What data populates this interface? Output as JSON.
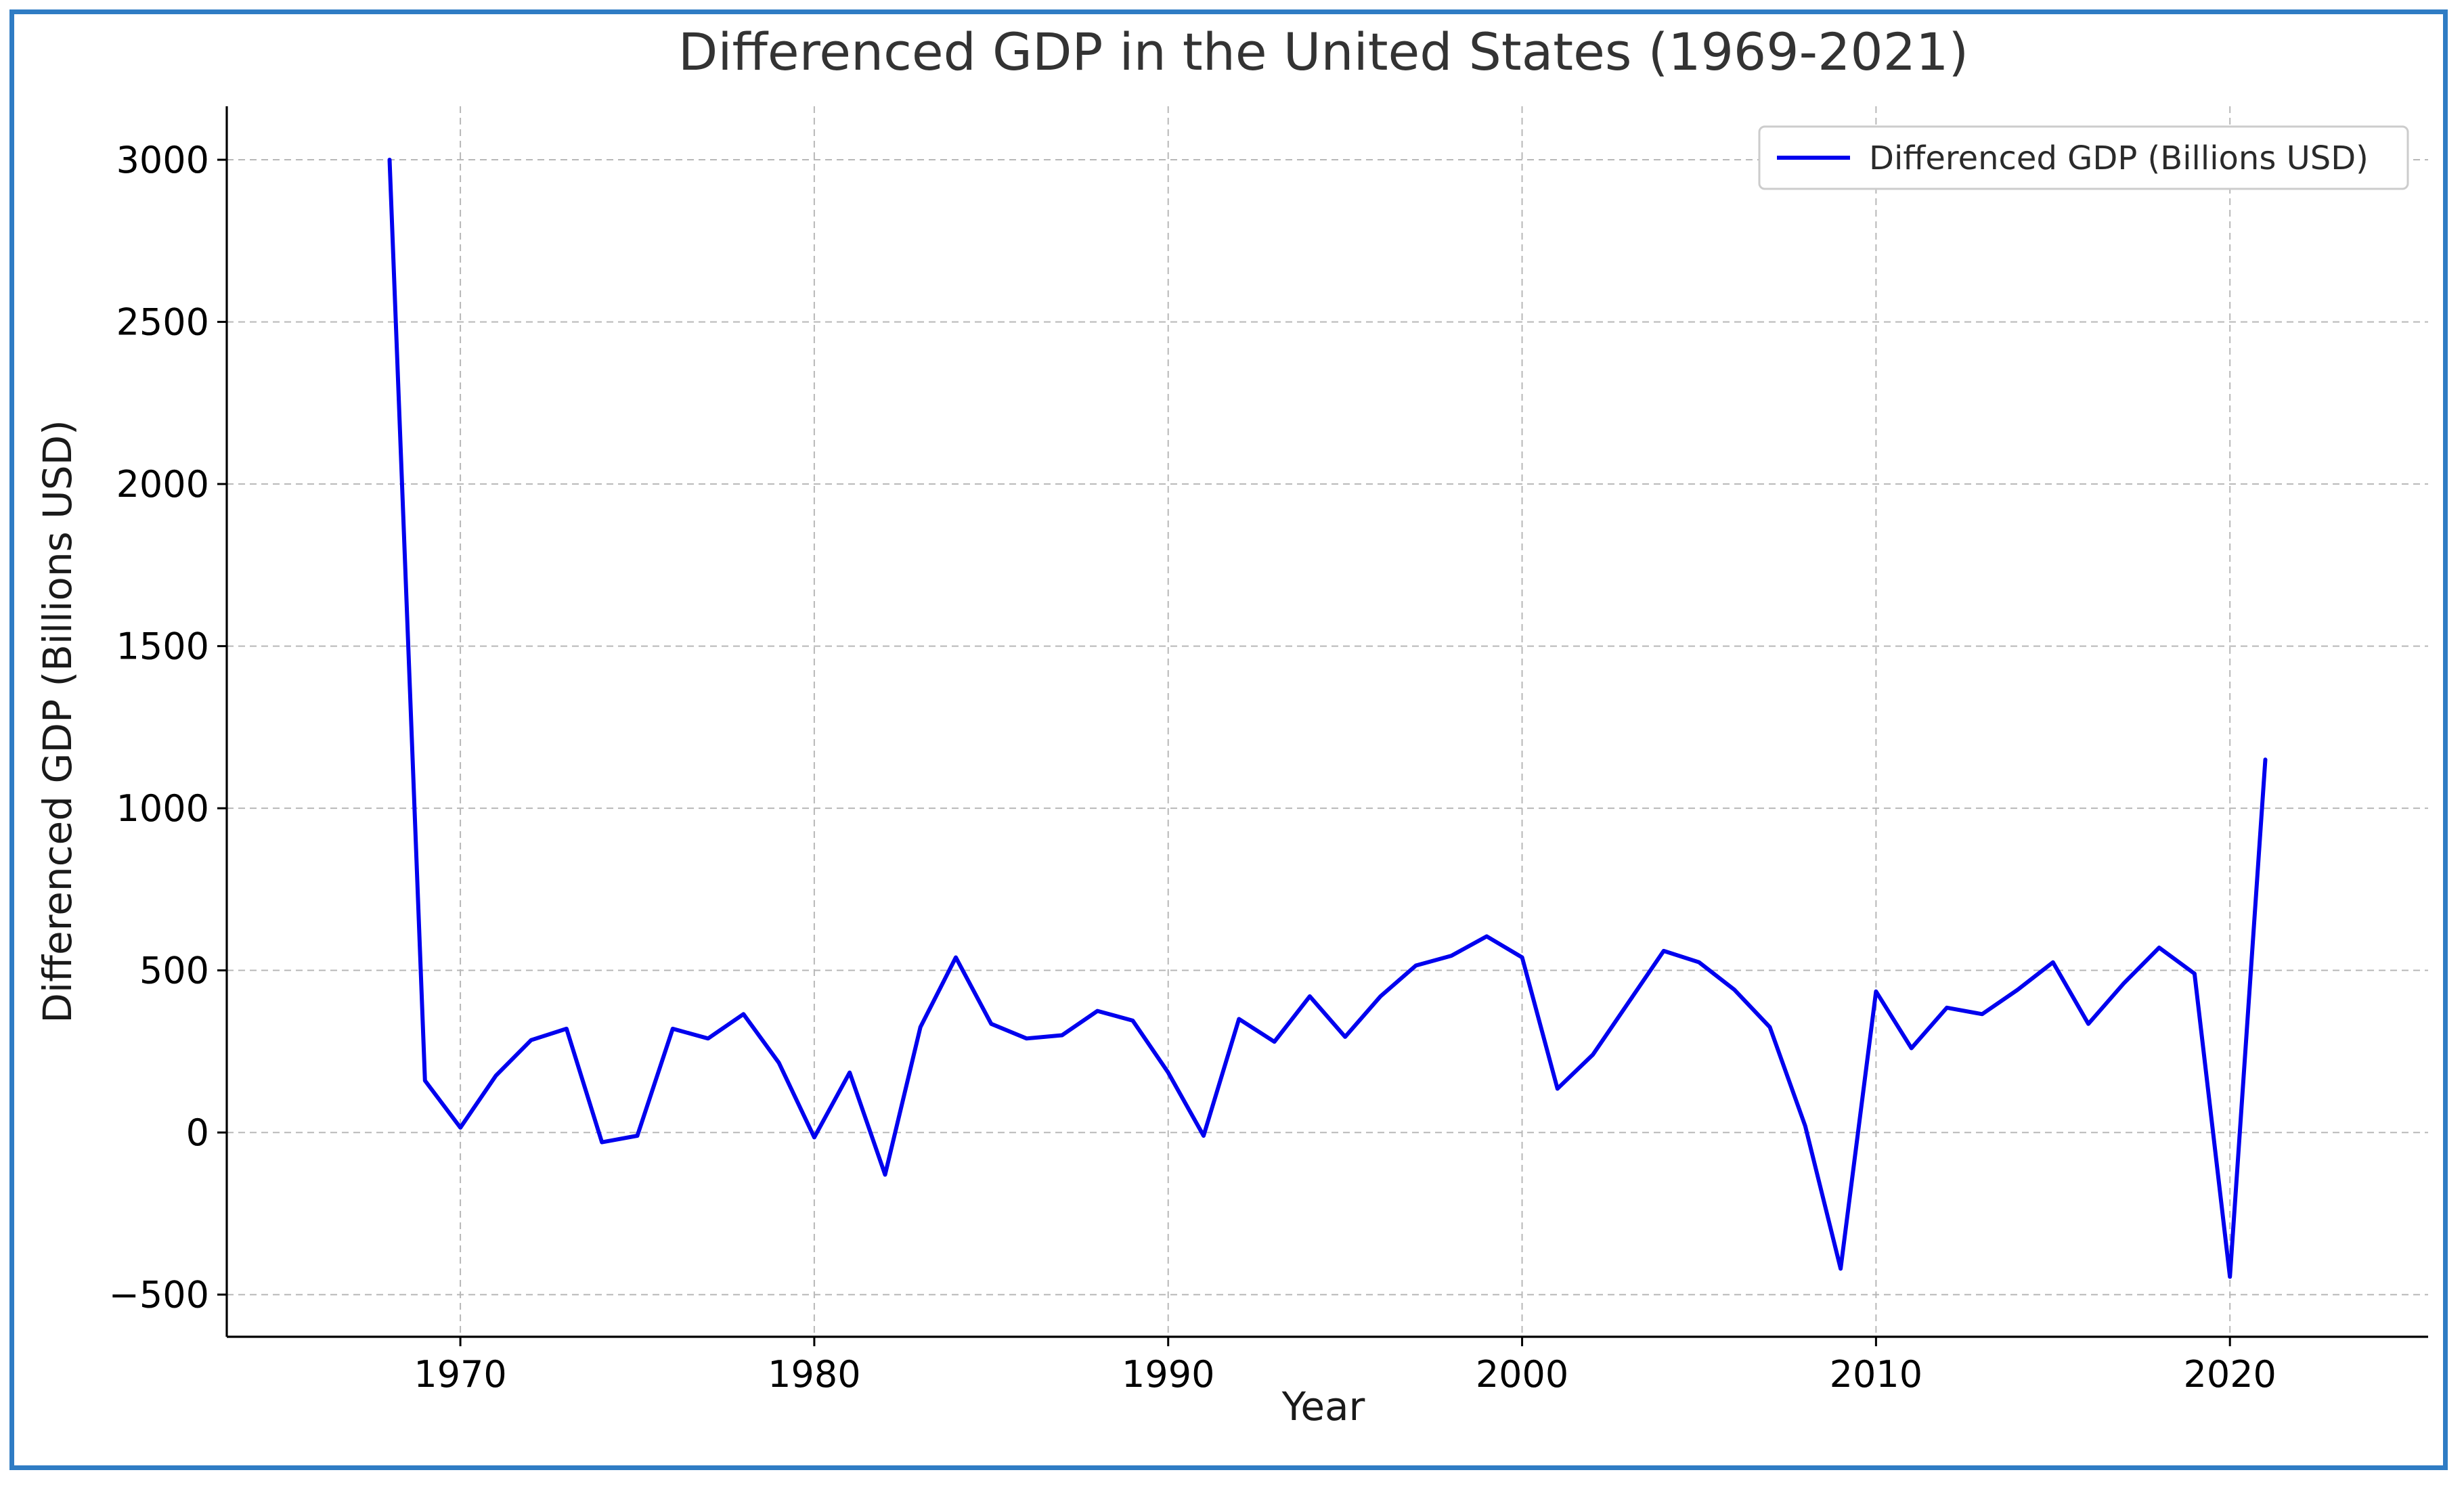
{
  "chart_data": {
    "type": "line",
    "title": "Differenced GDP in the United States (1969-2021)",
    "xlabel": "Year",
    "ylabel": "Differenced GDP (Billions USD)",
    "xlim": [
      1963.4,
      2025.6
    ],
    "ylim": [
      -630,
      3165
    ],
    "xticks": [
      1970,
      1980,
      1990,
      2000,
      2010,
      2020
    ],
    "yticks": [
      -500,
      0,
      500,
      1000,
      1500,
      2000,
      2500,
      3000
    ],
    "xtick_labels": [
      "1970",
      "1980",
      "1990",
      "2000",
      "2010",
      "2020"
    ],
    "ytick_labels": [
      "−500",
      "0",
      "500",
      "1000",
      "1500",
      "2000",
      "2500",
      "3000"
    ],
    "grid": true,
    "legend_position": "top-right",
    "series": [
      {
        "name": "Differenced GDP (Billions USD)",
        "color": "#0000ee",
        "x": [
          1968,
          1969,
          1970,
          1971,
          1972,
          1973,
          1974,
          1975,
          1976,
          1977,
          1978,
          1979,
          1980,
          1981,
          1982,
          1983,
          1984,
          1985,
          1986,
          1987,
          1988,
          1989,
          1990,
          1991,
          1992,
          1993,
          1994,
          1995,
          1996,
          1997,
          1998,
          1999,
          2000,
          2001,
          2002,
          2003,
          2004,
          2005,
          2006,
          2007,
          2008,
          2009,
          2010,
          2011,
          2012,
          2013,
          2014,
          2015,
          2016,
          2017,
          2018,
          2019,
          2020,
          2021
        ],
        "values": [
          3000,
          160,
          15,
          175,
          285,
          320,
          -30,
          -10,
          320,
          290,
          365,
          215,
          -15,
          185,
          -130,
          325,
          540,
          335,
          290,
          300,
          375,
          345,
          185,
          -10,
          350,
          280,
          420,
          295,
          420,
          515,
          545,
          605,
          540,
          135,
          240,
          400,
          560,
          525,
          440,
          325,
          20,
          -420,
          435,
          260,
          385,
          365,
          440,
          525,
          335,
          460,
          570,
          490,
          -445,
          1150
        ]
      }
    ]
  }
}
